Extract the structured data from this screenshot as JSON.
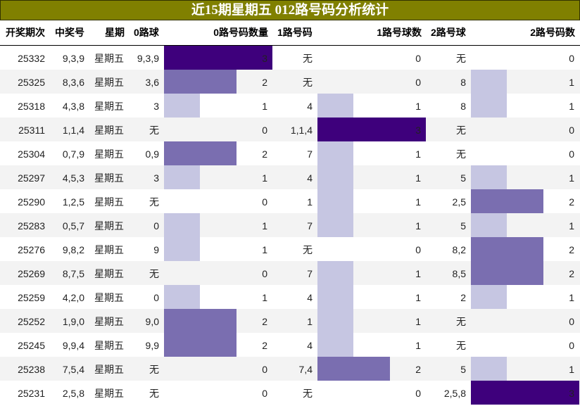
{
  "title": "近15期星期五 012路号码分析统计",
  "colors": {
    "title_bg": "#808000",
    "bar_1": "#c6c6e2",
    "bar_2": "#7a6eb0",
    "bar_3": "#3e007c",
    "row_alt": "#f3f3f3"
  },
  "headers": [
    "开奖期次",
    "中奖号",
    "星期",
    "0路球",
    "0路号码数量",
    "1路号码",
    "1路号球数",
    "2路号球",
    "2路号码数"
  ],
  "rows": [
    {
      "period": "25332",
      "numbers": "9,3,9",
      "weekday": "星期五",
      "r0": "9,3,9",
      "c0": "3",
      "r1": "无",
      "c1": "0",
      "r2": "无",
      "c2": "0"
    },
    {
      "period": "25325",
      "numbers": "8,3,6",
      "weekday": "星期五",
      "r0": "3,6",
      "c0": "2",
      "r1": "无",
      "c1": "0",
      "r2": "8",
      "c2": "1"
    },
    {
      "period": "25318",
      "numbers": "4,3,8",
      "weekday": "星期五",
      "r0": "3",
      "c0": "1",
      "r1": "4",
      "c1": "1",
      "r2": "8",
      "c2": "1"
    },
    {
      "period": "25311",
      "numbers": "1,1,4",
      "weekday": "星期五",
      "r0": "无",
      "c0": "0",
      "r1": "1,1,4",
      "c1": "3",
      "r2": "无",
      "c2": "0"
    },
    {
      "period": "25304",
      "numbers": "0,7,9",
      "weekday": "星期五",
      "r0": "0,9",
      "c0": "2",
      "r1": "7",
      "c1": "1",
      "r2": "无",
      "c2": "0"
    },
    {
      "period": "25297",
      "numbers": "4,5,3",
      "weekday": "星期五",
      "r0": "3",
      "c0": "1",
      "r1": "4",
      "c1": "1",
      "r2": "5",
      "c2": "1"
    },
    {
      "period": "25290",
      "numbers": "1,2,5",
      "weekday": "星期五",
      "r0": "无",
      "c0": "0",
      "r1": "1",
      "c1": "1",
      "r2": "2,5",
      "c2": "2"
    },
    {
      "period": "25283",
      "numbers": "0,5,7",
      "weekday": "星期五",
      "r0": "0",
      "c0": "1",
      "r1": "7",
      "c1": "1",
      "r2": "5",
      "c2": "1"
    },
    {
      "period": "25276",
      "numbers": "9,8,2",
      "weekday": "星期五",
      "r0": "9",
      "c0": "1",
      "r1": "无",
      "c1": "0",
      "r2": "8,2",
      "c2": "2"
    },
    {
      "period": "25269",
      "numbers": "8,7,5",
      "weekday": "星期五",
      "r0": "无",
      "c0": "0",
      "r1": "7",
      "c1": "1",
      "r2": "8,5",
      "c2": "2"
    },
    {
      "period": "25259",
      "numbers": "4,2,0",
      "weekday": "星期五",
      "r0": "0",
      "c0": "1",
      "r1": "4",
      "c1": "1",
      "r2": "2",
      "c2": "1"
    },
    {
      "period": "25252",
      "numbers": "1,9,0",
      "weekday": "星期五",
      "r0": "9,0",
      "c0": "2",
      "r1": "1",
      "c1": "1",
      "r2": "无",
      "c2": "0"
    },
    {
      "period": "25245",
      "numbers": "9,9,4",
      "weekday": "星期五",
      "r0": "9,9",
      "c0": "2",
      "r1": "4",
      "c1": "1",
      "r2": "无",
      "c2": "0"
    },
    {
      "period": "25238",
      "numbers": "7,5,4",
      "weekday": "星期五",
      "r0": "无",
      "c0": "0",
      "r1": "7,4",
      "c1": "2",
      "r2": "5",
      "c2": "1"
    },
    {
      "period": "25231",
      "numbers": "2,5,8",
      "weekday": "星期五",
      "r0": "无",
      "c0": "0",
      "r1": "无",
      "c1": "0",
      "r2": "2,5,8",
      "c2": "3"
    }
  ],
  "chart_data": {
    "type": "table",
    "title": "近15期星期五 012路号码分析统计",
    "columns": [
      "开奖期次",
      "中奖号",
      "星期",
      "0路球",
      "0路号码数量",
      "1路号码",
      "1路号球数",
      "2路号球",
      "2路号码数"
    ],
    "categories": [
      "25332",
      "25325",
      "25318",
      "25311",
      "25304",
      "25297",
      "25290",
      "25283",
      "25276",
      "25269",
      "25259",
      "25252",
      "25245",
      "25238",
      "25231"
    ],
    "series": [
      {
        "name": "0路号码数量",
        "values": [
          3,
          2,
          1,
          0,
          2,
          1,
          0,
          1,
          1,
          0,
          1,
          2,
          2,
          0,
          0
        ]
      },
      {
        "name": "1路号球数",
        "values": [
          0,
          0,
          1,
          3,
          1,
          1,
          1,
          1,
          0,
          1,
          1,
          1,
          1,
          2,
          0
        ]
      },
      {
        "name": "2路号码数",
        "values": [
          0,
          1,
          1,
          0,
          0,
          1,
          2,
          1,
          2,
          2,
          1,
          0,
          0,
          1,
          3
        ]
      }
    ],
    "bar_scale_max": 3,
    "grid": false
  }
}
